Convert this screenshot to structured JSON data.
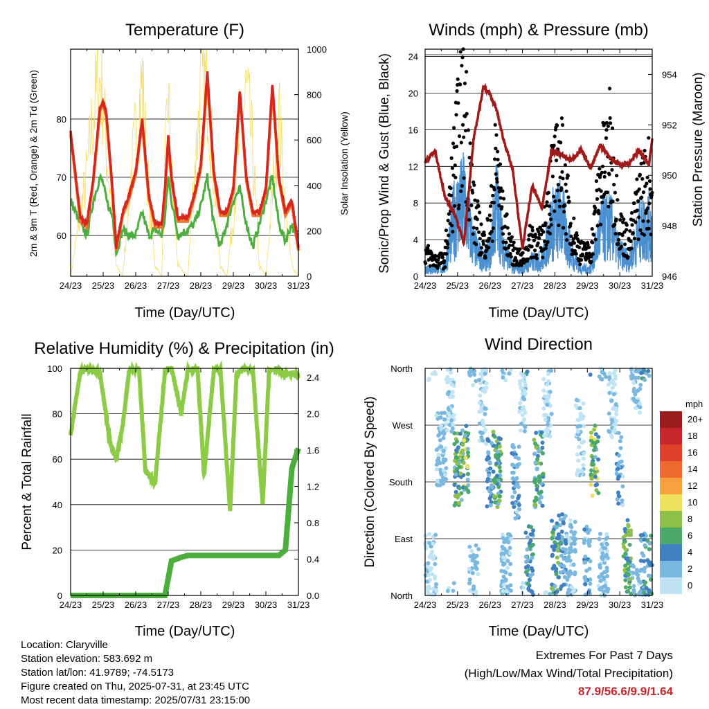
{
  "day_ticks": [
    "24/23",
    "25/23",
    "26/23",
    "27/23",
    "28/23",
    "29/23",
    "30/23",
    "31/23"
  ],
  "xlabel": "Time (Day/UTC)",
  "colors": {
    "temp2m": "#d7261e",
    "temp9m": "#f0782c",
    "dewpoint": "#4cae3c",
    "solar": "#f5dc5a",
    "gust": "#000000",
    "wind": "#4a8fd0",
    "pressure": "#a01a1a",
    "rh": "#8ccb46",
    "precip": "#4cae3c"
  },
  "panels": {
    "temperature": {
      "title": "Temperature (F)",
      "ylabel_left": "2m & 9m T (Red, Orange) & 2m Td (Green)",
      "ylabel_right": "Solar Insolation (Yellow)",
      "left_ticks": [
        "60",
        "70",
        "80"
      ],
      "right_ticks": [
        "0",
        "200",
        "400",
        "600",
        "800",
        "1000"
      ]
    },
    "winds": {
      "title": "Winds (mph) & Pressure (mb)",
      "ylabel_left": "Sonic/Prop Wind & Gust (Blue, Black)",
      "ylabel_right": "Station Pressure (Maroon)",
      "left_ticks": [
        "0",
        "4",
        "8",
        "12",
        "16",
        "20",
        "24"
      ],
      "right_ticks": [
        "946",
        "948",
        "950",
        "952",
        "954"
      ]
    },
    "humidity": {
      "title": "Relative Humidity (%) & Precipitation (in)",
      "ylabel_left": "Percent & Total Rainfall",
      "left_ticks": [
        "0",
        "20",
        "40",
        "60",
        "80",
        "100"
      ],
      "right_ticks": [
        "0.0",
        "0.4",
        "0.8",
        "1.2",
        "1.6",
        "2.0",
        "2.4"
      ]
    },
    "direction": {
      "title": "Wind Direction",
      "ylabel_left": "Direction (Colored By Speed)",
      "dir_ticks": [
        "North",
        "East",
        "South",
        "West",
        "North"
      ],
      "legend_title": "mph",
      "legend_labels": [
        "20+",
        "18",
        "16",
        "14",
        "12",
        "10",
        "8",
        "6",
        "4",
        "2",
        "0"
      ],
      "legend_colors": [
        "#9c1b1e",
        "#c8262d",
        "#e0402a",
        "#f06a30",
        "#f7a040",
        "#ede05a",
        "#8cc04a",
        "#4aa86a",
        "#3f80c0",
        "#7ab8e0",
        "#c0e4f4"
      ]
    }
  },
  "info": {
    "location": "Location: Claryville",
    "elevation": "Station elevation: 583.692 m",
    "latlon": "Station lat/lon: 41.9789; -74.5173",
    "created": "Figure created on Thu, 2025-07-31, at 23:45 UTC",
    "recent": "Most recent data timestamp: 2025/07/31 23:15:00"
  },
  "extremes": {
    "line1": "Extremes For Past 7 Days",
    "line2": "(High/Low/Max Wind/Total Precipitation)",
    "values": "87.9/56.6/9.9/1.64"
  },
  "chart_data": [
    {
      "type": "line",
      "title": "Temperature (F)",
      "xlabel": "Time (Day/UTC)",
      "ylabel": "2m & 9m T (Red, Orange) & 2m Td (Green)",
      "y2label": "Solar Insolation (Yellow)",
      "ylim": [
        53,
        92
      ],
      "y2lim": [
        0,
        1000
      ],
      "x": [
        0,
        0.3,
        0.5,
        0.7,
        0.9,
        1.0,
        1.1,
        1.3,
        1.4,
        1.6,
        1.8,
        2.0,
        2.2,
        2.4,
        2.6,
        2.8,
        2.9,
        3.0,
        3.1,
        3.3,
        3.6,
        3.8,
        4.0,
        4.2,
        4.4,
        4.6,
        4.8,
        5.0,
        5.2,
        5.4,
        5.6,
        5.8,
        6.0,
        6.2,
        6.4,
        6.6,
        6.8,
        7.0
      ],
      "series": [
        {
          "name": "2m T",
          "values": [
            78,
            63,
            62,
            70,
            82,
            83,
            81,
            67,
            58,
            64,
            67,
            71,
            80,
            67,
            62,
            62,
            68,
            77,
            70,
            63,
            63,
            67,
            72,
            88,
            71,
            64,
            64,
            68,
            85,
            70,
            64,
            64,
            68,
            86,
            70,
            64,
            66,
            58
          ]
        },
        {
          "name": "2m Td",
          "values": [
            66,
            62,
            60,
            66,
            70,
            69,
            66,
            63,
            57,
            61,
            60,
            60,
            64,
            60,
            61,
            60,
            63,
            70,
            66,
            60,
            61,
            62,
            65,
            70,
            62,
            58,
            62,
            66,
            68,
            62,
            58,
            62,
            66,
            70,
            62,
            59,
            62,
            58
          ]
        },
        {
          "name": "Solar",
          "values": [
            0,
            300,
            500,
            800,
            950,
            900,
            600,
            300,
            50,
            0,
            400,
            700,
            950,
            400,
            50,
            0,
            500,
            900,
            500,
            50,
            0,
            500,
            900,
            950,
            500,
            50,
            0,
            300,
            700,
            900,
            600,
            50,
            0,
            400,
            800,
            300,
            50,
            0
          ]
        }
      ]
    },
    {
      "type": "scatter",
      "title": "Winds (mph) & Pressure (mb)",
      "xlabel": "Time (Day/UTC)",
      "ylabel": "Sonic/Prop Wind & Gust (Blue, Black)",
      "y2label": "Station Pressure (Maroon)",
      "ylim": [
        0,
        24.8
      ],
      "y2lim": [
        946,
        955
      ],
      "x": [
        0,
        0.3,
        0.6,
        0.9,
        1.2,
        1.5,
        1.8,
        2.0,
        2.2,
        2.4,
        2.7,
        3.0,
        3.3,
        3.6,
        3.9,
        4.2,
        4.5,
        4.8,
        5.1,
        5.4,
        5.7,
        6.0,
        6.3,
        6.6,
        6.9,
        7.0
      ],
      "series": [
        {
          "name": "Gust",
          "values": [
            3,
            2,
            2,
            14,
            22,
            8,
            4,
            6,
            15,
            7,
            3,
            2,
            5,
            4,
            12,
            14,
            6,
            3,
            3,
            12,
            16,
            6,
            4,
            10,
            12,
            10
          ]
        },
        {
          "name": "Wind",
          "values": [
            1,
            1,
            1,
            8,
            10,
            4,
            2,
            3,
            10,
            4,
            1,
            1,
            2,
            2,
            7,
            8,
            3,
            1,
            1,
            6,
            7,
            3,
            2,
            6,
            7,
            6
          ]
        },
        {
          "name": "Pressure",
          "values": [
            950.5,
            951.0,
            949.2,
            948.5,
            947.3,
            951.5,
            953.5,
            953.2,
            952.6,
            951.5,
            950.2,
            947.1,
            949.6,
            948.7,
            951.0,
            950.8,
            950.6,
            951.0,
            950.3,
            951.2,
            950.7,
            950.4,
            950.5,
            951.0,
            950.4,
            951.5
          ]
        }
      ]
    },
    {
      "type": "line",
      "title": "Relative Humidity (%) & Precipitation (in)",
      "xlabel": "Time (Day/UTC)",
      "ylabel": "Percent & Total Rainfall",
      "ylim": [
        0,
        100
      ],
      "y2lim": [
        0,
        2.5
      ],
      "x": [
        0,
        0.3,
        0.6,
        0.9,
        1.2,
        1.4,
        1.6,
        1.8,
        2.1,
        2.3,
        2.6,
        2.9,
        3.1,
        3.4,
        3.6,
        3.9,
        4.1,
        4.4,
        4.6,
        4.9,
        5.1,
        5.4,
        5.6,
        5.9,
        6.1,
        6.4,
        6.6,
        6.8,
        7.0
      ],
      "series": [
        {
          "name": "RH",
          "values": [
            71,
            99,
            100,
            98,
            68,
            60,
            75,
            99,
            100,
            55,
            50,
            99,
            100,
            80,
            99,
            100,
            53,
            99,
            100,
            37,
            98,
            100,
            99,
            40,
            99,
            100,
            97,
            98,
            96
          ]
        },
        {
          "name": "Precip",
          "values": [
            0,
            0,
            0,
            0,
            0,
            0,
            0,
            0,
            0,
            0,
            0,
            0,
            0.38,
            0.42,
            0.44,
            0.44,
            0.44,
            0.44,
            0.44,
            0.44,
            0.44,
            0.44,
            0.44,
            0.44,
            0.44,
            0.44,
            0.5,
            1.4,
            1.62
          ]
        }
      ]
    },
    {
      "type": "scatter",
      "title": "Wind Direction",
      "xlabel": "Time (Day/UTC)",
      "ylabel": "Direction (Colored By Speed)",
      "y_categories": [
        "North",
        "East",
        "South",
        "West",
        "North"
      ],
      "ylim": [
        0,
        360
      ],
      "x": [
        0.2,
        0.5,
        0.8,
        1.0,
        1.2,
        1.5,
        1.8,
        2.0,
        2.2,
        2.5,
        2.8,
        3.0,
        3.2,
        3.5,
        3.8,
        4.0,
        4.2,
        4.5,
        4.8,
        5.0,
        5.2,
        5.5,
        5.8,
        6.0,
        6.2,
        6.5,
        6.8
      ],
      "series": [
        {
          "name": "Direction",
          "values": [
            40,
            230,
            320,
            200,
            210,
            30,
            300,
            190,
            200,
            40,
            180,
            320,
            50,
            200,
            310,
            60,
            70,
            60,
            250,
            50,
            210,
            40,
            310,
            200,
            60,
            350,
            40
          ]
        },
        {
          "name": "Speed",
          "values": [
            1,
            2,
            1,
            7,
            8,
            2,
            1,
            4,
            6,
            2,
            3,
            1,
            5,
            6,
            1,
            6,
            4,
            2,
            1,
            3,
            8,
            2,
            1,
            3,
            7,
            2,
            5
          ]
        }
      ]
    }
  ]
}
